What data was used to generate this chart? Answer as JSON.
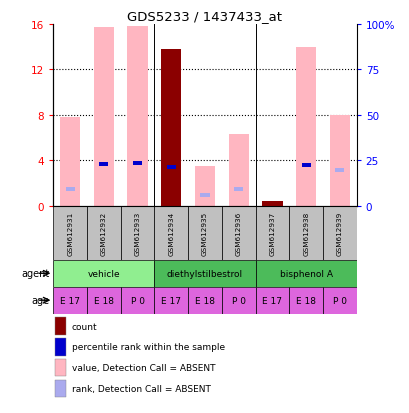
{
  "title": "GDS5233 / 1437433_at",
  "samples": [
    "GSM612931",
    "GSM612932",
    "GSM612933",
    "GSM612934",
    "GSM612935",
    "GSM612936",
    "GSM612937",
    "GSM612938",
    "GSM612939"
  ],
  "pink_bars": [
    7.8,
    15.7,
    15.8,
    0.0,
    3.5,
    6.3,
    0.0,
    14.0,
    8.0
  ],
  "dark_red_bars": [
    0.0,
    0.0,
    0.0,
    13.8,
    0.0,
    0.0,
    0.4,
    0.0,
    0.0
  ],
  "blue_bars": [
    0.0,
    3.7,
    3.8,
    3.4,
    0.0,
    0.0,
    0.0,
    3.6,
    0.0
  ],
  "light_blue_bars": [
    1.5,
    0.0,
    0.0,
    0.0,
    1.0,
    1.5,
    0.0,
    0.0,
    3.2
  ],
  "ylim": [
    0,
    16
  ],
  "yticks": [
    0,
    4,
    8,
    12,
    16
  ],
  "y2ticks": [
    0,
    25,
    50,
    75,
    100
  ],
  "y2labels": [
    "0",
    "25",
    "50",
    "75",
    "100%"
  ],
  "agent_configs": [
    {
      "label": "vehicle",
      "start": 0,
      "end": 3,
      "color": "#90EE90"
    },
    {
      "label": "diethylstilbestrol",
      "start": 3,
      "end": 6,
      "color": "#4CBB5A"
    },
    {
      "label": "bisphenol A",
      "start": 6,
      "end": 9,
      "color": "#4CBB5A"
    }
  ],
  "ages": [
    "E 17",
    "E 18",
    "P 0",
    "E 17",
    "E 18",
    "P 0",
    "E 17",
    "E 18",
    "P 0"
  ],
  "age_color": "#DD66DD",
  "sample_bg_color": "#C0C0C0",
  "bar_width": 0.6,
  "pink_color": "#FFB6C1",
  "dark_red_color": "#8B0000",
  "blue_color": "#0000CD",
  "light_blue_color": "#AAAAEE",
  "legend_items": [
    {
      "color": "#8B0000",
      "label": "count"
    },
    {
      "color": "#0000CD",
      "label": "percentile rank within the sample"
    },
    {
      "color": "#FFB6C1",
      "label": "value, Detection Call = ABSENT"
    },
    {
      "color": "#AAAAEE",
      "label": "rank, Detection Call = ABSENT"
    }
  ]
}
